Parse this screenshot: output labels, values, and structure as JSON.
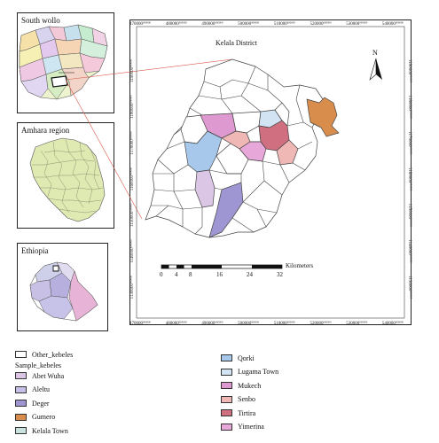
{
  "insets": {
    "south_wollo": "South wollo",
    "amhara": "Amhara region",
    "ethiopia": "Ethiopia"
  },
  "main_map": {
    "district_label": "Kelala District",
    "north_label": "N",
    "scale_bar": {
      "ticks": [
        "0",
        "4",
        "8",
        "16",
        "24",
        "32"
      ],
      "unit": "Kilometers"
    },
    "top_ticks": [
      "470000",
      "480000",
      "490000",
      "500000",
      "510000",
      "520000",
      "530000",
      "540000"
    ],
    "bottom_ticks": [
      "470000",
      "480000",
      "490000",
      "500000",
      "510000",
      "520000",
      "530000",
      "540000"
    ],
    "left_ticks": [
      "1190000",
      "1180000",
      "1170000",
      "1160000",
      "1150000",
      "1140000",
      "1130000"
    ],
    "right_ticks": [
      "1190000",
      "1180000",
      "1170000",
      "1160000",
      "1150000",
      "1140000",
      "1130000"
    ],
    "tick_suffix": "000000"
  },
  "legend": {
    "other_label": "Other_kebeles",
    "group_title": "Sample_kebeles",
    "left_items": [
      {
        "label": "Abet Wuha",
        "color": "#dcc6e6"
      },
      {
        "label": "Aleltu",
        "color": "#c5c1e6"
      },
      {
        "label": "Deger",
        "color": "#9e96d2"
      },
      {
        "label": "Gumero",
        "color": "#d98d4c"
      },
      {
        "label": "Kelala Town",
        "color": "#c9e2dd"
      }
    ],
    "right_items": [
      {
        "label": "Qorki",
        "color": "#a7c8ea"
      },
      {
        "label": "Lugama Town",
        "color": "#d2e3f4"
      },
      {
        "label": "Mukech",
        "color": "#de9ad0"
      },
      {
        "label": "Senbo",
        "color": "#efb8b5"
      },
      {
        "label": "Tirtira",
        "color": "#cf6f80"
      },
      {
        "label": "Yimerina",
        "color": "#e7a7d8"
      }
    ],
    "other_color": "#ffffff"
  }
}
